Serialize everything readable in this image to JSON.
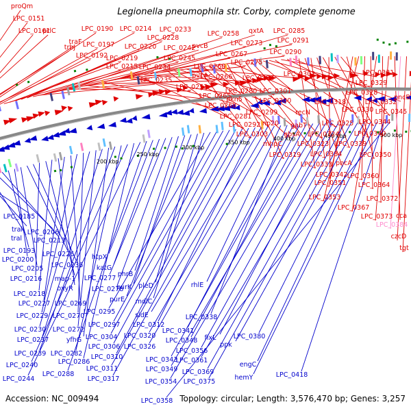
{
  "title": "Legionella pneumophila str. Corby, complete genome",
  "footer": {
    "accession": "Accession: NC_009494",
    "summary": "Topology: circular; Length: 3,576,470 bp; Genes: 3,257"
  },
  "colors": {
    "forward": "#e00000",
    "reverse": "#0000cc",
    "highlight": "#ff88cc",
    "backbone": "#888888"
  },
  "ticks": [
    "200 kbp",
    "250 kbp",
    "300 kbp",
    "350 kbp",
    "400 kbp",
    "450 kbp",
    "500 kbp"
  ],
  "labels_forward": [
    "proQm",
    "LPC_0151",
    "prlC",
    "LPC_0161",
    "trbJ",
    "traF",
    "LPC_0190",
    "LPC_0192",
    "LPC_0197",
    "LPC_0214",
    "LPC_0215",
    "LPC_0219",
    "LPC_0220",
    "LPC_0228",
    "LPC_0233",
    "LPC_0234",
    "LPC_0235",
    "LPC_0242",
    "LPC_0245",
    "pvcB",
    "pvcA",
    "LPC_0253",
    "LPC_0258",
    "LPC_0260",
    "LPC_0265",
    "LPC_0266",
    "LPC_0267",
    "LPC_0268",
    "LPC_0273",
    "qxtA",
    "LPC_0275",
    "LPC_0280",
    "pkn5",
    "LPC_0281",
    "LPC_0284",
    "LPC_0285",
    "LPC_0290",
    "LPC_0291",
    "LPC_0292",
    "LPC_0299",
    "LPC_0300",
    "LPC_0301",
    "LPC_0302",
    "LPC_0303",
    "np20",
    "gbsA",
    "gabT",
    "recN",
    "mhpC",
    "LPC_0318",
    "LPC_0319",
    "LPC_0323",
    "LPC_0324",
    "LPC_0325",
    "LPC_0328",
    "LPC_0329",
    "LPC_0330",
    "LPC_0331",
    "LPC_0332",
    "pncB",
    "LPC_0333",
    "pncA",
    "LPC_0334",
    "LPC_0339",
    "LPC_0340",
    "LPC_0342",
    "LPC_0344",
    "LPC_0345",
    "LPC_0350",
    "LPC_0351",
    "LPC_0353",
    "LPC_0360",
    "LPC_0364",
    "LPC_0367",
    "LPC_0372",
    "LPC_0373",
    "cca",
    "LPC_0384",
    "czcD",
    "tgt"
  ],
  "labels_reverse": [
    "LPC_0185",
    "tral",
    "tral",
    "LPC_0206",
    "LPC_0213",
    "LPC_0193",
    "LPC_0200",
    "LPC_0205",
    "LPC_0226",
    "LPC_0236",
    "LPC_0216",
    "map-1",
    "LPC_0218",
    "oxyR",
    "LPC_0227",
    "LPC_0269",
    "LPC_0229",
    "LPC_0270",
    "LPC_0230",
    "LPC_0272",
    "LPC_0237",
    "yfhG",
    "LPC_0239",
    "LPC_0282",
    "LPC_0240",
    "LPC_0286",
    "LPC_0244",
    "LPC_0288",
    "htpX",
    "katG",
    "LPC_0277",
    "LPC_0278",
    "phrB",
    "purK",
    "purE",
    "pleD",
    "mdlC",
    "LPC_0295",
    "LPC_0297",
    "LPC_0304",
    "LPC_0306",
    "LPC_0310",
    "LPC_0311",
    "LPC_0317",
    "LPC_0312",
    "sidE",
    "LPC_0320",
    "LPC_0326",
    "rhlE",
    "LPC_0338",
    "LPC_0341",
    "LPC_0343",
    "LPC_0348",
    "LPC_0349",
    "LPC_0354",
    "LPC_0356",
    "fixL",
    "LPC_0361",
    "LPC_0369",
    "LPC_0375",
    "ppk",
    "LPC_0380",
    "engC",
    "hemY",
    "LPC_0418",
    "LPC_0358"
  ],
  "labels_highlight": [
    "LPC_0384"
  ]
}
